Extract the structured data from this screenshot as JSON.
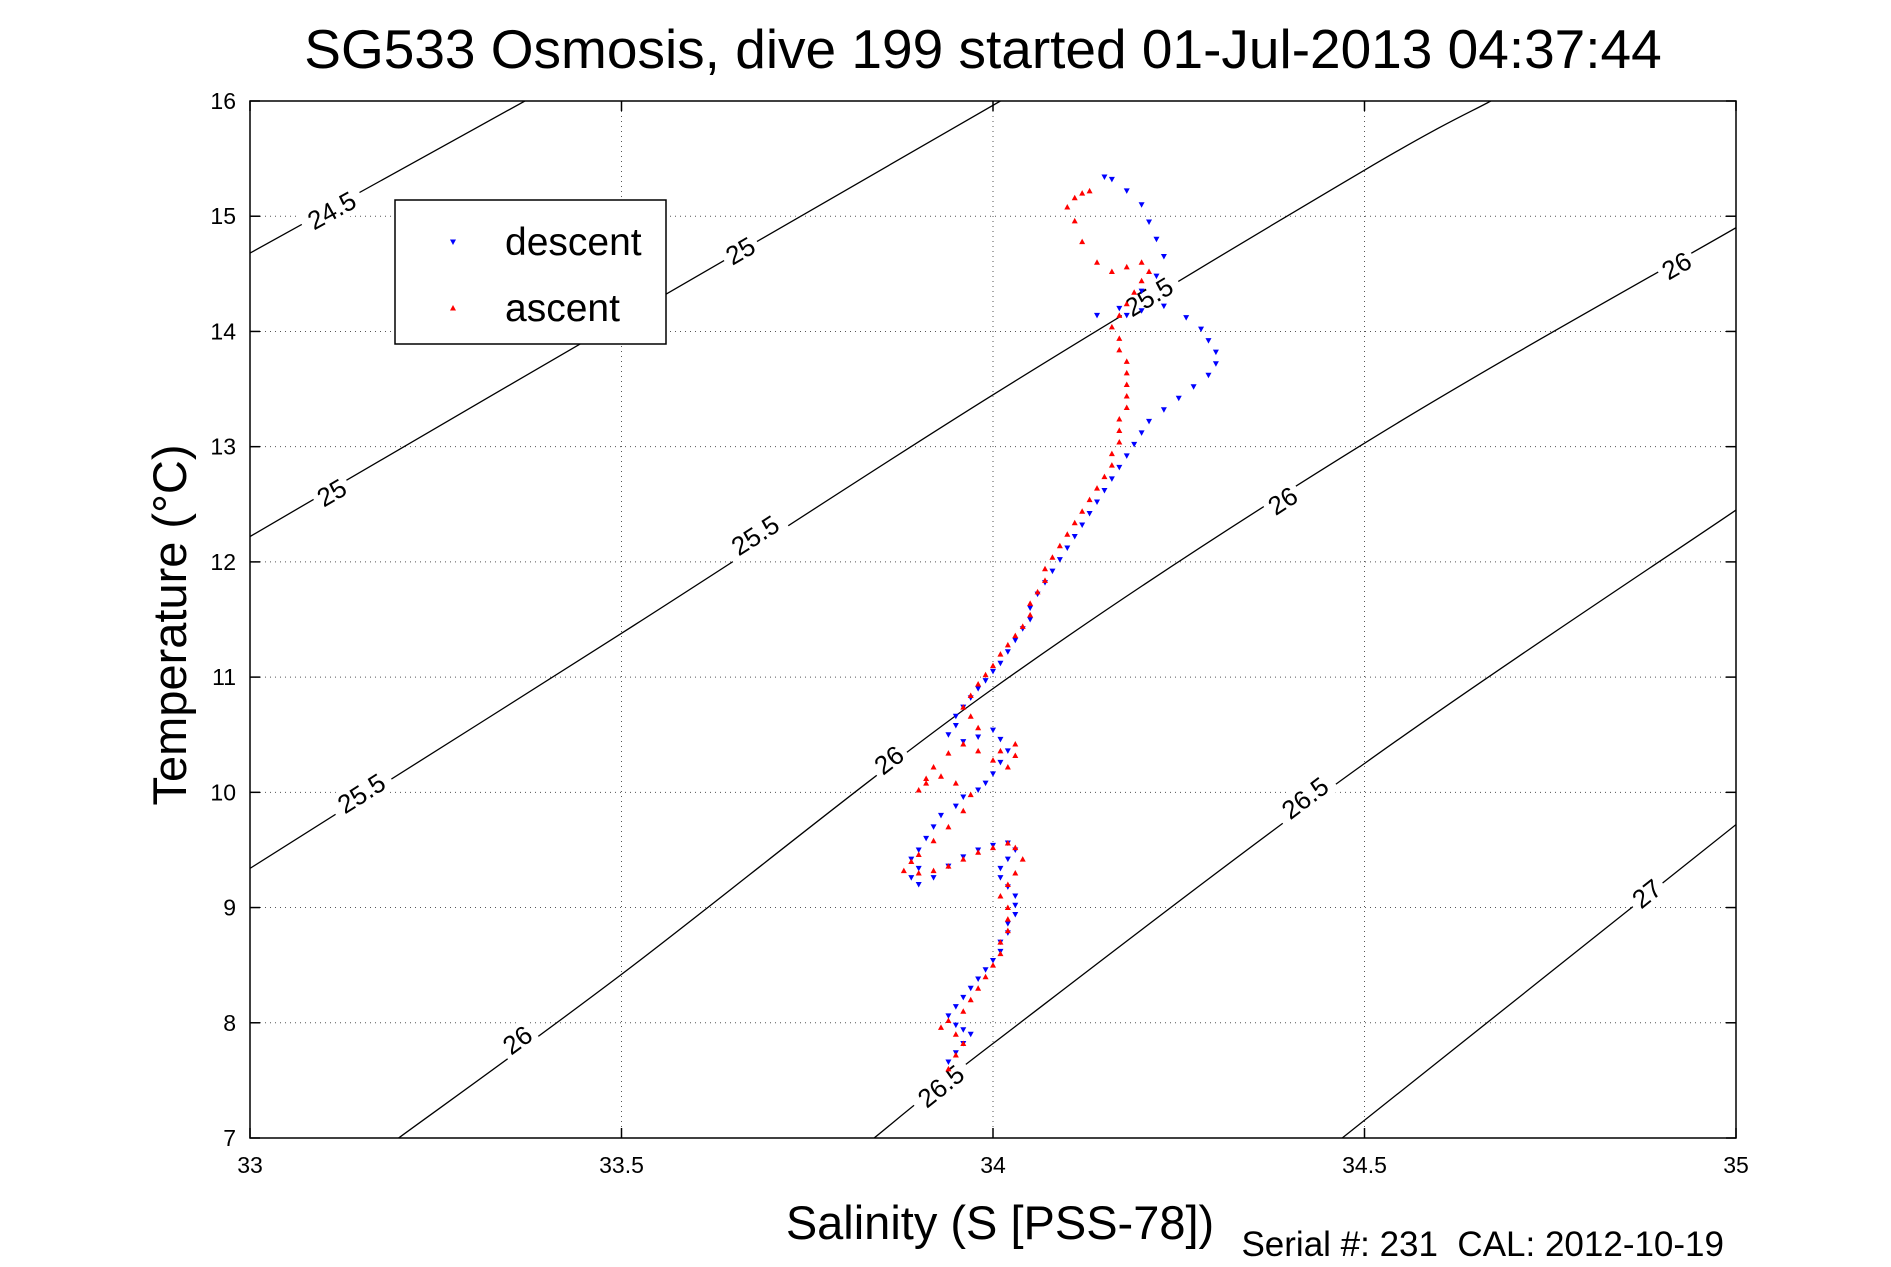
{
  "chart_data": {
    "type": "scatter",
    "title": "SG533 Osmosis, dive 199 started 01-Jul-2013 04:37:44",
    "xlabel": "Salinity (S [PSS-78])",
    "ylabel": "Temperature (°C)",
    "footer": "Serial #: 231  CAL: 2012-10-19",
    "xlim": [
      33,
      35
    ],
    "ylim": [
      7,
      16
    ],
    "xticks": [
      33,
      33.5,
      34,
      34.5,
      35
    ],
    "xtick_labels": [
      "33",
      "33.5",
      "34",
      "34.5",
      "35"
    ],
    "yticks": [
      7,
      8,
      9,
      10,
      11,
      12,
      13,
      14,
      15,
      16
    ],
    "ytick_labels": [
      "7",
      "8",
      "9",
      "10",
      "11",
      "12",
      "13",
      "14",
      "15",
      "16"
    ],
    "grid": true,
    "legend_position": "top-left",
    "series": [
      {
        "name": "descent",
        "color": "#0000ff",
        "marker": "triangle-down",
        "points": [
          [
            34.15,
            15.34
          ],
          [
            34.16,
            15.32
          ],
          [
            34.18,
            15.22
          ],
          [
            34.2,
            15.1
          ],
          [
            34.21,
            14.95
          ],
          [
            34.22,
            14.8
          ],
          [
            34.23,
            14.65
          ],
          [
            34.22,
            14.48
          ],
          [
            34.2,
            14.35
          ],
          [
            34.17,
            14.2
          ],
          [
            34.14,
            14.14
          ],
          [
            34.18,
            14.14
          ],
          [
            34.2,
            14.18
          ],
          [
            34.23,
            14.22
          ],
          [
            34.26,
            14.12
          ],
          [
            34.28,
            14.02
          ],
          [
            34.29,
            13.92
          ],
          [
            34.3,
            13.82
          ],
          [
            34.3,
            13.72
          ],
          [
            34.29,
            13.62
          ],
          [
            34.27,
            13.52
          ],
          [
            34.25,
            13.42
          ],
          [
            34.23,
            13.32
          ],
          [
            34.21,
            13.22
          ],
          [
            34.2,
            13.12
          ],
          [
            34.19,
            13.02
          ],
          [
            34.18,
            12.92
          ],
          [
            34.17,
            12.82
          ],
          [
            34.16,
            12.72
          ],
          [
            34.15,
            12.62
          ],
          [
            34.14,
            12.52
          ],
          [
            34.13,
            12.42
          ],
          [
            34.12,
            12.32
          ],
          [
            34.11,
            12.22
          ],
          [
            34.1,
            12.12
          ],
          [
            34.09,
            12.02
          ],
          [
            34.08,
            11.92
          ],
          [
            34.07,
            11.82
          ],
          [
            34.06,
            11.72
          ],
          [
            34.05,
            11.6
          ],
          [
            34.05,
            11.5
          ],
          [
            34.04,
            11.42
          ],
          [
            34.03,
            11.32
          ],
          [
            34.02,
            11.22
          ],
          [
            34.01,
            11.12
          ],
          [
            34,
            11.05
          ],
          [
            33.99,
            10.97
          ],
          [
            33.98,
            10.9
          ],
          [
            33.97,
            10.82
          ],
          [
            33.96,
            10.74
          ],
          [
            33.95,
            10.66
          ],
          [
            33.95,
            10.58
          ],
          [
            33.94,
            10.5
          ],
          [
            33.96,
            10.44
          ],
          [
            33.98,
            10.48
          ],
          [
            34,
            10.54
          ],
          [
            34.01,
            10.46
          ],
          [
            34.02,
            10.36
          ],
          [
            34.01,
            10.26
          ],
          [
            34,
            10.16
          ],
          [
            33.99,
            10.08
          ],
          [
            33.98,
            10.02
          ],
          [
            33.96,
            9.96
          ],
          [
            33.95,
            9.88
          ],
          [
            33.93,
            9.8
          ],
          [
            33.92,
            9.7
          ],
          [
            33.91,
            9.6
          ],
          [
            33.9,
            9.5
          ],
          [
            33.89,
            9.42
          ],
          [
            33.9,
            9.34
          ],
          [
            33.89,
            9.26
          ],
          [
            33.9,
            9.2
          ],
          [
            33.92,
            9.26
          ],
          [
            33.94,
            9.36
          ],
          [
            33.96,
            9.44
          ],
          [
            33.98,
            9.5
          ],
          [
            34,
            9.54
          ],
          [
            34.02,
            9.56
          ],
          [
            34.03,
            9.5
          ],
          [
            34.02,
            9.42
          ],
          [
            34.01,
            9.34
          ],
          [
            34.01,
            9.26
          ],
          [
            34.02,
            9.18
          ],
          [
            34.03,
            9.1
          ],
          [
            34.03,
            9.02
          ],
          [
            34.03,
            8.94
          ],
          [
            34.02,
            8.86
          ],
          [
            34.02,
            8.78
          ],
          [
            34.01,
            8.7
          ],
          [
            34.01,
            8.62
          ],
          [
            34,
            8.54
          ],
          [
            33.99,
            8.46
          ],
          [
            33.98,
            8.38
          ],
          [
            33.97,
            8.3
          ],
          [
            33.96,
            8.22
          ],
          [
            33.95,
            8.14
          ],
          [
            33.94,
            8.06
          ],
          [
            33.95,
            7.98
          ],
          [
            33.96,
            7.94
          ],
          [
            33.97,
            7.9
          ],
          [
            33.96,
            7.82
          ],
          [
            33.95,
            7.74
          ],
          [
            33.94,
            7.66
          ]
        ]
      },
      {
        "name": "ascent",
        "color": "#ff0000",
        "marker": "triangle-up",
        "points": [
          [
            33.94,
            7.6
          ],
          [
            33.95,
            7.72
          ],
          [
            33.96,
            7.82
          ],
          [
            33.95,
            7.9
          ],
          [
            33.93,
            7.96
          ],
          [
            33.94,
            8.02
          ],
          [
            33.96,
            8.1
          ],
          [
            33.97,
            8.2
          ],
          [
            33.98,
            8.3
          ],
          [
            33.99,
            8.4
          ],
          [
            34,
            8.5
          ],
          [
            34.01,
            8.6
          ],
          [
            34.01,
            8.7
          ],
          [
            34.02,
            8.8
          ],
          [
            34.02,
            8.9
          ],
          [
            34.02,
            9
          ],
          [
            34.01,
            9.1
          ],
          [
            34.02,
            9.2
          ],
          [
            34.03,
            9.3
          ],
          [
            34.04,
            9.42
          ],
          [
            34.03,
            9.52
          ],
          [
            34.02,
            9.56
          ],
          [
            34,
            9.52
          ],
          [
            33.98,
            9.48
          ],
          [
            33.96,
            9.42
          ],
          [
            33.94,
            9.36
          ],
          [
            33.92,
            9.32
          ],
          [
            33.9,
            9.3
          ],
          [
            33.88,
            9.32
          ],
          [
            33.89,
            9.4
          ],
          [
            33.9,
            9.46
          ],
          [
            33.92,
            9.58
          ],
          [
            33.94,
            9.7
          ],
          [
            33.96,
            9.84
          ],
          [
            33.97,
            9.98
          ],
          [
            33.95,
            10.08
          ],
          [
            33.93,
            10.14
          ],
          [
            33.91,
            10.08
          ],
          [
            33.9,
            10.02
          ],
          [
            33.91,
            10.12
          ],
          [
            33.92,
            10.22
          ],
          [
            33.94,
            10.34
          ],
          [
            33.96,
            10.42
          ],
          [
            33.98,
            10.36
          ],
          [
            34,
            10.28
          ],
          [
            34.02,
            10.22
          ],
          [
            34.03,
            10.32
          ],
          [
            34.03,
            10.42
          ],
          [
            34.01,
            10.36
          ],
          [
            33.98,
            10.56
          ],
          [
            33.97,
            10.66
          ],
          [
            33.96,
            10.74
          ],
          [
            33.97,
            10.84
          ],
          [
            33.98,
            10.94
          ],
          [
            33.99,
            11.02
          ],
          [
            34,
            11.1
          ],
          [
            34.01,
            11.2
          ],
          [
            34.02,
            11.28
          ],
          [
            34.03,
            11.36
          ],
          [
            34.04,
            11.44
          ],
          [
            34.05,
            11.54
          ],
          [
            34.05,
            11.64
          ],
          [
            34.06,
            11.74
          ],
          [
            34.07,
            11.84
          ],
          [
            34.07,
            11.94
          ],
          [
            34.08,
            12.04
          ],
          [
            34.09,
            12.14
          ],
          [
            34.1,
            12.24
          ],
          [
            34.11,
            12.34
          ],
          [
            34.12,
            12.44
          ],
          [
            34.13,
            12.54
          ],
          [
            34.14,
            12.64
          ],
          [
            34.15,
            12.74
          ],
          [
            34.16,
            12.84
          ],
          [
            34.16,
            12.94
          ],
          [
            34.17,
            13.04
          ],
          [
            34.17,
            13.14
          ],
          [
            34.17,
            13.24
          ],
          [
            34.18,
            13.34
          ],
          [
            34.18,
            13.44
          ],
          [
            34.18,
            13.54
          ],
          [
            34.18,
            13.64
          ],
          [
            34.18,
            13.74
          ],
          [
            34.17,
            13.84
          ],
          [
            34.17,
            13.94
          ],
          [
            34.16,
            14.04
          ],
          [
            34.17,
            14.14
          ],
          [
            34.18,
            14.24
          ],
          [
            34.19,
            14.34
          ],
          [
            34.2,
            14.44
          ],
          [
            34.21,
            14.52
          ],
          [
            34.2,
            14.6
          ],
          [
            34.18,
            14.56
          ],
          [
            34.16,
            14.52
          ],
          [
            34.14,
            14.6
          ],
          [
            34.12,
            14.78
          ],
          [
            34.11,
            14.96
          ],
          [
            34.1,
            15.08
          ],
          [
            34.11,
            15.16
          ],
          [
            34.12,
            15.2
          ],
          [
            34.13,
            15.22
          ]
        ]
      }
    ],
    "isopycnals": [
      {
        "label": "24.5",
        "points": [
          [
            33,
            14.68
          ],
          [
            33.37,
            16
          ]
        ],
        "labels_at": [
          [
            33.11,
            15.05
          ]
        ]
      },
      {
        "label": "25",
        "points": [
          [
            33,
            12.22
          ],
          [
            33.5,
            14.1
          ],
          [
            34.01,
            16
          ]
        ],
        "labels_at": [
          [
            33.11,
            12.6
          ],
          [
            33.66,
            14.7
          ]
        ]
      },
      {
        "label": "25.5",
        "points": [
          [
            33,
            9.34
          ],
          [
            33.5,
            11.38
          ],
          [
            34,
            13.45
          ],
          [
            34.5,
            15.4
          ],
          [
            34.67,
            16
          ]
        ],
        "labels_at": [
          [
            33.15,
            9.99
          ],
          [
            33.68,
            12.23
          ],
          [
            34.21,
            14.3
          ]
        ]
      },
      {
        "label": "26",
        "points": [
          [
            33.2,
            7
          ],
          [
            33.5,
            8.42
          ],
          [
            34,
            10.9
          ],
          [
            34.5,
            13.03
          ],
          [
            35,
            14.9
          ]
        ],
        "labels_at": [
          [
            33.36,
            7.85
          ],
          [
            33.86,
            10.28
          ],
          [
            34.39,
            12.53
          ],
          [
            34.92,
            14.57
          ]
        ]
      },
      {
        "label": "26.5",
        "points": [
          [
            33.84,
            7
          ],
          [
            34,
            7.82
          ],
          [
            34.5,
            10.25
          ],
          [
            35,
            12.45
          ]
        ],
        "labels_at": [
          [
            33.93,
            7.45
          ],
          [
            34.42,
            9.95
          ]
        ]
      },
      {
        "label": "27",
        "points": [
          [
            34.47,
            7
          ],
          [
            35,
            9.72
          ]
        ],
        "labels_at": [
          [
            34.88,
            9.12
          ]
        ]
      }
    ]
  }
}
